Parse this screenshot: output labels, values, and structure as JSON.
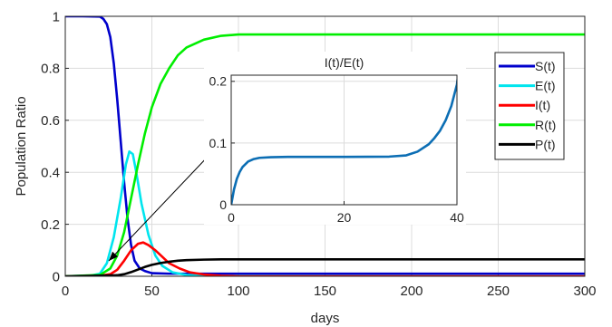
{
  "chart_data": [
    {
      "type": "line",
      "title": "",
      "xlabel": "days",
      "ylabel": "Population Ratio",
      "xlim": [
        0,
        300
      ],
      "ylim": [
        0,
        1
      ],
      "x_ticks": [
        "0",
        "50",
        "100",
        "150",
        "200",
        "250",
        "300"
      ],
      "y_ticks": [
        "0",
        "0.2",
        "0.4",
        "0.6",
        "0.8",
        "1"
      ],
      "grid": true,
      "legend_position": "right",
      "series": [
        {
          "name": "S(t)",
          "color": "#0000cc",
          "points": [
            [
              0,
              1
            ],
            [
              10,
              1
            ],
            [
              20,
              0.999
            ],
            [
              22,
              0.99
            ],
            [
              24,
              0.97
            ],
            [
              26,
              0.92
            ],
            [
              28,
              0.82
            ],
            [
              30,
              0.68
            ],
            [
              32,
              0.52
            ],
            [
              34,
              0.36
            ],
            [
              36,
              0.22
            ],
            [
              38,
              0.12
            ],
            [
              40,
              0.06
            ],
            [
              43,
              0.03
            ],
            [
              46,
              0.02
            ],
            [
              50,
              0.012
            ],
            [
              60,
              0.01
            ],
            [
              300,
              0.01
            ]
          ]
        },
        {
          "name": "E(t)",
          "color": "#00e5ee",
          "points": [
            [
              0,
              0
            ],
            [
              15,
              0.003
            ],
            [
              20,
              0.01
            ],
            [
              24,
              0.05
            ],
            [
              28,
              0.15
            ],
            [
              32,
              0.3
            ],
            [
              35,
              0.43
            ],
            [
              37,
              0.48
            ],
            [
              39,
              0.47
            ],
            [
              41,
              0.4
            ],
            [
              44,
              0.28
            ],
            [
              48,
              0.16
            ],
            [
              52,
              0.08
            ],
            [
              56,
              0.04
            ],
            [
              62,
              0.015
            ],
            [
              70,
              0.005
            ],
            [
              80,
              0.001
            ],
            [
              300,
              0
            ]
          ]
        },
        {
          "name": "I(t)",
          "color": "#ff0000",
          "points": [
            [
              0,
              0
            ],
            [
              20,
              0.002
            ],
            [
              26,
              0.008
            ],
            [
              30,
              0.025
            ],
            [
              34,
              0.06
            ],
            [
              38,
              0.1
            ],
            [
              42,
              0.125
            ],
            [
              45,
              0.13
            ],
            [
              48,
              0.12
            ],
            [
              52,
              0.1
            ],
            [
              56,
              0.075
            ],
            [
              60,
              0.05
            ],
            [
              66,
              0.03
            ],
            [
              72,
              0.015
            ],
            [
              80,
              0.007
            ],
            [
              90,
              0.002
            ],
            [
              100,
              0
            ],
            [
              300,
              0
            ]
          ]
        },
        {
          "name": "R(t)",
          "color": "#00ee00",
          "points": [
            [
              0,
              0
            ],
            [
              20,
              0.005
            ],
            [
              26,
              0.03
            ],
            [
              30,
              0.08
            ],
            [
              34,
              0.17
            ],
            [
              38,
              0.3
            ],
            [
              42,
              0.43
            ],
            [
              46,
              0.55
            ],
            [
              50,
              0.65
            ],
            [
              55,
              0.74
            ],
            [
              60,
              0.8
            ],
            [
              65,
              0.85
            ],
            [
              70,
              0.88
            ],
            [
              80,
              0.91
            ],
            [
              90,
              0.925
            ],
            [
              100,
              0.93
            ],
            [
              300,
              0.93
            ]
          ]
        },
        {
          "name": "P(t)",
          "color": "#000000",
          "points": [
            [
              0,
              0
            ],
            [
              30,
              0.004
            ],
            [
              34,
              0.008
            ],
            [
              38,
              0.016
            ],
            [
              42,
              0.026
            ],
            [
              46,
              0.036
            ],
            [
              50,
              0.044
            ],
            [
              55,
              0.051
            ],
            [
              60,
              0.056
            ],
            [
              65,
              0.06
            ],
            [
              70,
              0.062
            ],
            [
              80,
              0.064
            ],
            [
              90,
              0.065
            ],
            [
              300,
              0.065
            ]
          ]
        }
      ]
    },
    {
      "type": "line",
      "title": "I(t)/E(t)",
      "xlim": [
        0,
        40
      ],
      "ylim": [
        0,
        0.21
      ],
      "x_ticks": [
        "0",
        "20",
        "40"
      ],
      "y_ticks": [
        "0",
        "0.1",
        "0.2"
      ],
      "grid": true,
      "series": [
        {
          "color": "#0c6eb4",
          "points": [
            [
              0,
              0
            ],
            [
              0.5,
              0.025
            ],
            [
              1,
              0.042
            ],
            [
              1.5,
              0.053
            ],
            [
              2,
              0.061
            ],
            [
              3,
              0.07
            ],
            [
              4,
              0.074
            ],
            [
              5,
              0.076
            ],
            [
              7,
              0.077
            ],
            [
              10,
              0.0775
            ],
            [
              20,
              0.0775
            ],
            [
              28,
              0.078
            ],
            [
              31,
              0.08
            ],
            [
              33,
              0.086
            ],
            [
              35,
              0.098
            ],
            [
              36,
              0.108
            ],
            [
              37,
              0.12
            ],
            [
              38,
              0.137
            ],
            [
              39,
              0.16
            ],
            [
              40,
              0.195
            ],
            [
              40.2,
              0.21
            ]
          ]
        }
      ]
    }
  ]
}
